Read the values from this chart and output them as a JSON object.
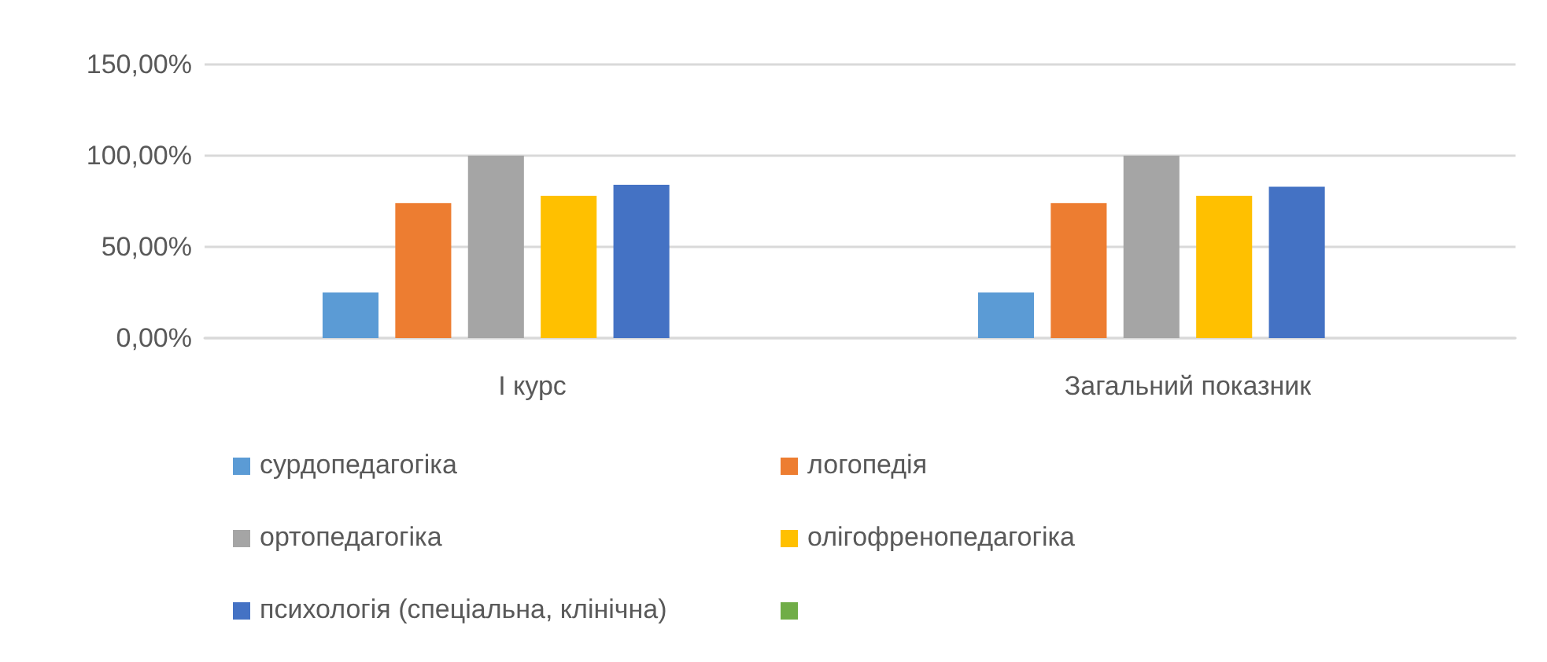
{
  "chart_data": {
    "type": "bar",
    "categories": [
      "І курс",
      "Загальний показник"
    ],
    "series": [
      {
        "name": "сурдопедагогіка",
        "color": "#5b9bd5",
        "values": [
          25,
          25
        ]
      },
      {
        "name": "логопедія",
        "color": "#ed7d31",
        "values": [
          74,
          74
        ]
      },
      {
        "name": "ортопедагогіка",
        "color": "#a5a5a5",
        "values": [
          100,
          100
        ]
      },
      {
        "name": "олігофренопедагогіка",
        "color": "#ffc000",
        "values": [
          78,
          78
        ]
      },
      {
        "name": "психологія (спеціальна, клінічна)",
        "color": "#4472c4",
        "values": [
          84,
          83
        ]
      },
      {
        "color": "#70ad47",
        "values": [
          null,
          null
        ]
      }
    ],
    "ylim": [
      0,
      150
    ],
    "yticks": [
      {
        "value": 0,
        "label": "0,00%"
      },
      {
        "value": 50,
        "label": "50,00%"
      },
      {
        "value": 100,
        "label": "100,00%"
      },
      {
        "value": 150,
        "label": "150,00%"
      }
    ],
    "grid": "y",
    "legend": "bottom"
  }
}
